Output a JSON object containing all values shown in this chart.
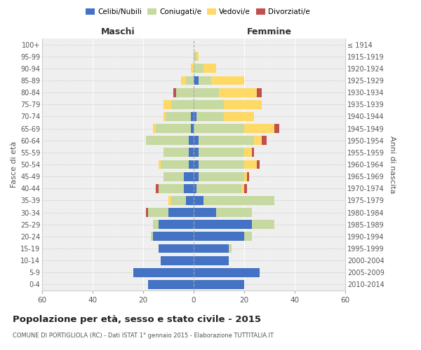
{
  "age_groups": [
    "0-4",
    "5-9",
    "10-14",
    "15-19",
    "20-24",
    "25-29",
    "30-34",
    "35-39",
    "40-44",
    "45-49",
    "50-54",
    "55-59",
    "60-64",
    "65-69",
    "70-74",
    "75-79",
    "80-84",
    "85-89",
    "90-94",
    "95-99",
    "100+"
  ],
  "birth_years": [
    "2010-2014",
    "2005-2009",
    "2000-2004",
    "1995-1999",
    "1990-1994",
    "1985-1989",
    "1980-1984",
    "1975-1979",
    "1970-1974",
    "1965-1969",
    "1960-1964",
    "1955-1959",
    "1950-1954",
    "1945-1949",
    "1940-1944",
    "1935-1939",
    "1930-1934",
    "1925-1929",
    "1920-1924",
    "1915-1919",
    "≤ 1914"
  ],
  "male": {
    "celibe": [
      18,
      24,
      13,
      14,
      16,
      14,
      10,
      3,
      4,
      4,
      2,
      2,
      2,
      1,
      1,
      0,
      0,
      0,
      0,
      0,
      0
    ],
    "coniugato": [
      0,
      0,
      0,
      0,
      1,
      2,
      8,
      6,
      10,
      8,
      11,
      10,
      17,
      14,
      10,
      9,
      7,
      3,
      0,
      0,
      0
    ],
    "vedovo": [
      0,
      0,
      0,
      0,
      0,
      0,
      0,
      1,
      0,
      0,
      1,
      0,
      0,
      1,
      1,
      3,
      0,
      2,
      1,
      0,
      0
    ],
    "divorziato": [
      0,
      0,
      0,
      0,
      0,
      0,
      1,
      0,
      1,
      0,
      0,
      0,
      0,
      0,
      0,
      0,
      1,
      0,
      0,
      0,
      0
    ]
  },
  "female": {
    "nubile": [
      20,
      26,
      14,
      14,
      20,
      23,
      9,
      4,
      1,
      2,
      2,
      2,
      2,
      0,
      1,
      0,
      0,
      2,
      0,
      0,
      0
    ],
    "coniugata": [
      0,
      0,
      0,
      1,
      3,
      9,
      14,
      28,
      18,
      18,
      18,
      18,
      22,
      20,
      11,
      12,
      10,
      5,
      4,
      1,
      0
    ],
    "vedova": [
      0,
      0,
      0,
      0,
      0,
      0,
      0,
      0,
      1,
      1,
      5,
      3,
      3,
      12,
      12,
      15,
      15,
      13,
      5,
      1,
      0
    ],
    "divorziata": [
      0,
      0,
      0,
      0,
      0,
      0,
      0,
      0,
      1,
      1,
      1,
      1,
      2,
      2,
      0,
      0,
      2,
      0,
      0,
      0,
      0
    ]
  },
  "colors": {
    "celibe_nubile": "#4472c4",
    "coniugato_coniugata": "#c5d9a0",
    "vedovo_vedova": "#ffd966",
    "divorziato_divorziata": "#c0504d"
  },
  "xlim": 60,
  "title": "Popolazione per età, sesso e stato civile - 2015",
  "subtitle": "COMUNE DI PORTIGLIOLA (RC) - Dati ISTAT 1° gennaio 2015 - Elaborazione TUTTITALIA.IT",
  "xlabel_left": "Maschi",
  "xlabel_right": "Femmine",
  "ylabel_left": "Fasce di età",
  "ylabel_right": "Anni di nascita",
  "legend_labels": [
    "Celibi/Nubili",
    "Coniugati/e",
    "Vedovi/e",
    "Divorziati/e"
  ],
  "bg_color": "#efefef",
  "bar_height": 0.75
}
